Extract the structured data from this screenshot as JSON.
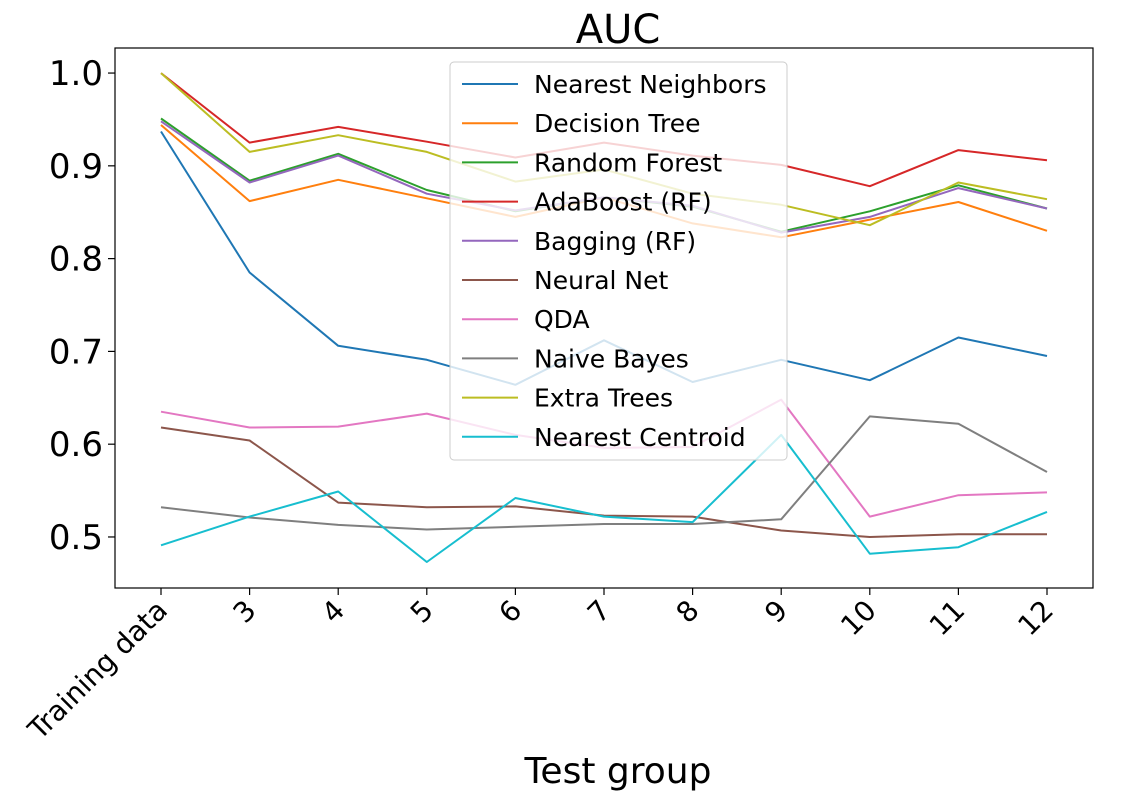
{
  "chart_data": {
    "type": "line",
    "title": "AUC",
    "xlabel": "Test group",
    "ylabel": "",
    "categories": [
      "Training data",
      "3",
      "4",
      "5",
      "6",
      "7",
      "8",
      "9",
      "10",
      "11",
      "12"
    ],
    "ylim": [
      0.445,
      1.027
    ],
    "yticks": [
      "0.5",
      "0.6",
      "0.7",
      "0.8",
      "0.9",
      "1.0"
    ],
    "grid": false,
    "legend_position": "top-center",
    "series": [
      {
        "name": "Nearest Neighbors",
        "color": "#1f77b4",
        "values": [
          0.937,
          0.785,
          0.706,
          0.691,
          0.664,
          0.712,
          0.667,
          0.691,
          0.669,
          0.715,
          0.695
        ]
      },
      {
        "name": "Decision Tree",
        "color": "#ff7f0e",
        "values": [
          0.944,
          0.862,
          0.885,
          0.865,
          0.845,
          0.866,
          0.838,
          0.823,
          0.842,
          0.861,
          0.83
        ]
      },
      {
        "name": "Random Forest",
        "color": "#2ca02c",
        "values": [
          0.951,
          0.884,
          0.913,
          0.874,
          0.851,
          0.866,
          0.856,
          0.829,
          0.851,
          0.879,
          0.854
        ]
      },
      {
        "name": "AdaBoost (RF)",
        "color": "#d62728",
        "values": [
          1.0,
          0.925,
          0.942,
          0.926,
          0.909,
          0.925,
          0.911,
          0.901,
          0.878,
          0.917,
          0.906
        ]
      },
      {
        "name": "Bagging (RF)",
        "color": "#9467bd",
        "values": [
          0.948,
          0.882,
          0.911,
          0.87,
          0.852,
          0.866,
          0.857,
          0.828,
          0.845,
          0.876,
          0.854
        ]
      },
      {
        "name": "Neural Net",
        "color": "#8c564b",
        "values": [
          0.618,
          0.604,
          0.537,
          0.532,
          0.533,
          0.523,
          0.522,
          0.507,
          0.5,
          0.503,
          0.503
        ]
      },
      {
        "name": "QDA",
        "color": "#e377c2",
        "values": [
          0.635,
          0.618,
          0.619,
          0.633,
          0.61,
          0.596,
          0.597,
          0.648,
          0.522,
          0.545,
          0.548
        ]
      },
      {
        "name": "Naive Bayes",
        "color": "#7f7f7f",
        "values": [
          0.532,
          0.521,
          0.513,
          0.508,
          0.511,
          0.514,
          0.514,
          0.519,
          0.63,
          0.622,
          0.57
        ]
      },
      {
        "name": "Extra Trees",
        "color": "#bcbd22",
        "values": [
          1.0,
          0.915,
          0.933,
          0.915,
          0.883,
          0.896,
          0.87,
          0.858,
          0.836,
          0.882,
          0.864
        ]
      },
      {
        "name": "Nearest Centroid",
        "color": "#17becf",
        "values": [
          0.491,
          0.522,
          0.549,
          0.473,
          0.542,
          0.522,
          0.516,
          0.61,
          0.482,
          0.489,
          0.527
        ]
      }
    ]
  }
}
